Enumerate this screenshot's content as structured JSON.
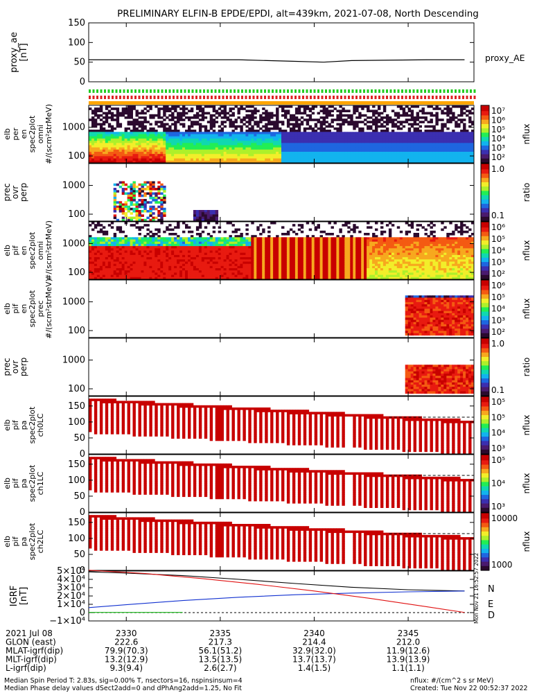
{
  "title": "PRELIMINARY ELFIN-B EPDE/EPDI, alt=439km, 2021-07-08, North Descending",
  "colors": {
    "spectrum": [
      "#ffffff",
      "#2b0a2e",
      "#4a1a6e",
      "#3b2fb0",
      "#1e66e0",
      "#12b3ee",
      "#10d8b0",
      "#22ee55",
      "#aef02a",
      "#f2ee2a",
      "#f7a81e",
      "#f45a12",
      "#e81a10",
      "#c80000"
    ],
    "line": "#000000",
    "red": "#e01010",
    "blue": "#1030d0",
    "green": "#10b010"
  },
  "footer": {
    "row_labels": [
      "2021 Jul 08",
      "GLON (east)",
      "MLAT-igrf(dip)",
      "MLT-igrf(dip)",
      "L-igrf(dip)"
    ],
    "columns": [
      [
        "2330",
        "222.6",
        "79.9(70.3)",
        "13.2(12.9)",
        "9.3(9.4)"
      ],
      [
        "2335",
        "217.3",
        "56.1(51.2)",
        "13.5(13.5)",
        "2.6(2.7)"
      ],
      [
        "2340",
        "214.4",
        "32.9(32.0)",
        "13.7(13.7)",
        "1.4(1.5)"
      ],
      [
        "2345",
        "212.0",
        "11.9(12.6)",
        "13.9(13.9)",
        "1.1(1.1)"
      ]
    ],
    "note1": "Median Spin Period T: 2.83s, sig=0.00% T, nsectors=16, nspinsinsum=4",
    "note2": "Median Phase delay values dSect2add=0 and dPhAng2add=1.25, No Fit",
    "units": "nflux: #/(cm^2 s sr MeV)",
    "created": "Created: Tue Nov 22 00:52:37 2022",
    "side_stamp": "Mon Nov 21 16:52:57 2022"
  },
  "chart_data": [
    {
      "panel": "proxy_ae",
      "type": "line",
      "ylabel": "proxy_ae [nT]",
      "ylim": [
        0,
        150
      ],
      "yticks": [
        "0",
        "50",
        "100",
        "150"
      ],
      "legend": "proxy_AE",
      "x": [
        2328.0,
        2332.0,
        2336.0,
        2339.0,
        2340.5,
        2342.0,
        2346.0,
        2348.0
      ],
      "y": [
        56,
        56,
        56,
        52,
        50,
        54,
        56,
        56
      ]
    },
    {
      "panel": "flags",
      "type": "bar",
      "rows": [
        "green",
        "red",
        "orange"
      ]
    },
    {
      "panel": "elb_perp_omni",
      "type": "heatmap",
      "ylabel": [
        "elb",
        "per",
        "en",
        "spec2plot",
        "omni",
        "#/(scm²strMeV)"
      ],
      "yticks": [
        "100",
        "1000"
      ],
      "colorbar": {
        "label": "nflux",
        "ticks": [
          "10⁷",
          "10⁶",
          "10⁵",
          "10⁴",
          "10³",
          "10²"
        ]
      }
    },
    {
      "panel": "prec_ovr_perp_e",
      "type": "heatmap",
      "ylabel": [
        "prec",
        "ovr",
        "perp"
      ],
      "yticks": [
        "100",
        "1000"
      ],
      "colorbar": {
        "label": "ratio",
        "ticks": [
          "1.0",
          "0.1"
        ]
      }
    },
    {
      "panel": "elb_pif_omni",
      "type": "heatmap",
      "ylabel": [
        "elb",
        "pif",
        "en",
        "spec2plot",
        "omni",
        "#/(scm²strMeV)"
      ],
      "yticks": [
        "100",
        "1000"
      ],
      "colorbar": {
        "label": "nflux",
        "ticks": [
          "10⁶",
          "10⁵",
          "10⁴",
          "10³",
          "10²"
        ]
      }
    },
    {
      "panel": "elb_pif_prec",
      "type": "heatmap",
      "ylabel": [
        "elb",
        "pif",
        "en",
        "spec2plot",
        "prec",
        "#/(scm²strMeV)"
      ],
      "yticks": [
        "100",
        "1000"
      ],
      "colorbar": {
        "label": "nflux",
        "ticks": [
          "10⁶",
          "10⁵",
          "10⁴",
          "10³",
          "10²"
        ]
      }
    },
    {
      "panel": "prec_ovr_perp_i",
      "type": "heatmap",
      "ylabel": [
        "prec",
        "ovr",
        "perp"
      ],
      "yticks": [
        "100",
        "1000"
      ],
      "colorbar": {
        "label": "ratio",
        "ticks": [
          "1.0",
          "0.1"
        ]
      }
    },
    {
      "panel": "elb_pif_pa_ch0",
      "type": "heatmap",
      "ylabel": [
        "elb",
        "pif",
        "pa",
        "spec2plot",
        "ch0LC"
      ],
      "yticks": [
        "0",
        "50",
        "100",
        "150"
      ],
      "ylim": [
        0,
        180
      ],
      "colorbar": {
        "label": "nflux",
        "ticks": [
          "10⁵",
          "10⁵",
          "10⁴",
          "10³"
        ]
      }
    },
    {
      "panel": "elb_pif_pa_ch1",
      "type": "heatmap",
      "ylabel": [
        "elb",
        "pif",
        "pa",
        "spec2plot",
        "ch1LC"
      ],
      "yticks": [
        "0",
        "50",
        "100",
        "150"
      ],
      "ylim": [
        0,
        180
      ],
      "colorbar": {
        "label": "nflux",
        "ticks": [
          "10⁵",
          "10⁴",
          "10³"
        ]
      }
    },
    {
      "panel": "elb_pif_pa_ch2",
      "type": "heatmap",
      "ylabel": [
        "elb",
        "pif",
        "pa",
        "spec2plot",
        "ch2LC"
      ],
      "yticks": [
        "0",
        "50",
        "100",
        "150"
      ],
      "ylim": [
        0,
        180
      ],
      "colorbar": {
        "label": "nflux",
        "ticks": [
          "10000",
          "1000"
        ]
      }
    },
    {
      "panel": "igrf",
      "type": "line",
      "ylabel": "IGRF [nT]",
      "ylim": [
        -10000,
        50000
      ],
      "yticks": [
        "−1×10⁴",
        "0",
        "1×10⁴",
        "2×10⁴",
        "3×10⁴",
        "4×10⁴",
        "5×10⁴"
      ],
      "legend": [
        "N",
        "E",
        "D"
      ],
      "series": [
        {
          "name": "N",
          "color": "#000000",
          "x": [
            2328,
            2330,
            2333,
            2336,
            2339,
            2342,
            2345,
            2348
          ],
          "y": [
            49000,
            47500,
            44500,
            40000,
            35000,
            30500,
            27500,
            26000
          ]
        },
        {
          "name": "E",
          "color": "#1030d0",
          "x": [
            2328,
            2330,
            2333,
            2336,
            2339,
            2342,
            2345,
            2348
          ],
          "y": [
            6000,
            9500,
            14500,
            18500,
            21500,
            23500,
            25000,
            26000
          ]
        },
        {
          "name": "D",
          "color": "#e01010",
          "x": [
            2328,
            2331,
            2334,
            2337,
            2340,
            2343,
            2346,
            2348
          ],
          "y": [
            51000,
            47000,
            41000,
            34000,
            26000,
            17000,
            7000,
            200
          ]
        },
        {
          "name": "",
          "color": "#10b010",
          "x": [
            2328,
            2333
          ],
          "y": [
            300,
            300
          ]
        }
      ]
    }
  ]
}
